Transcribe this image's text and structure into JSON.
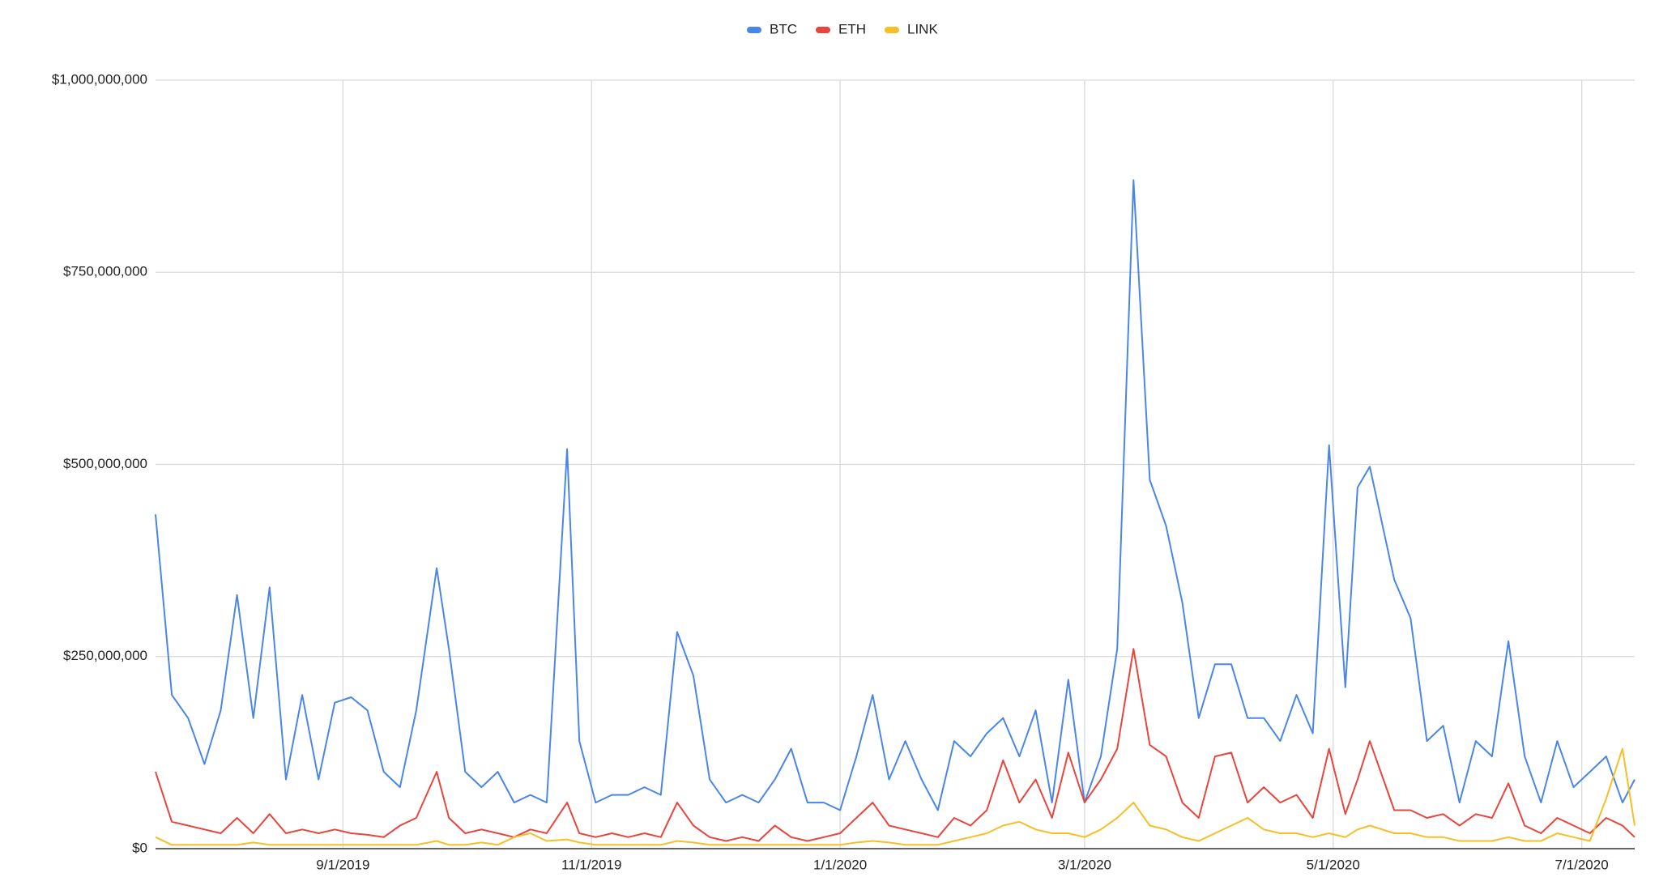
{
  "chart_data": {
    "type": "line",
    "x": [
      "7/17/2019",
      "7/21/2019",
      "7/25/2019",
      "7/29/2019",
      "8/2/2019",
      "8/6/2019",
      "8/10/2019",
      "8/14/2019",
      "8/18/2019",
      "8/22/2019",
      "8/26/2019",
      "8/30/2019",
      "9/3/2019",
      "9/7/2019",
      "9/11/2019",
      "9/15/2019",
      "9/19/2019",
      "9/24/2019",
      "9/27/2019",
      "10/1/2019",
      "10/5/2019",
      "10/9/2019",
      "10/13/2019",
      "10/17/2019",
      "10/21/2019",
      "10/26/2019",
      "10/29/2019",
      "11/2/2019",
      "11/6/2019",
      "11/10/2019",
      "11/14/2019",
      "11/18/2019",
      "11/22/2019",
      "11/26/2019",
      "11/30/2019",
      "12/4/2019",
      "12/8/2019",
      "12/12/2019",
      "12/16/2019",
      "12/20/2019",
      "12/24/2019",
      "12/28/2019",
      "1/1/2020",
      "1/5/2020",
      "1/9/2020",
      "1/13/2020",
      "1/17/2020",
      "1/21/2020",
      "1/25/2020",
      "1/29/2020",
      "2/2/2020",
      "2/6/2020",
      "2/10/2020",
      "2/14/2020",
      "2/18/2020",
      "2/22/2020",
      "2/26/2020",
      "3/1/2020",
      "3/5/2020",
      "3/9/2020",
      "3/13/2020",
      "3/17/2020",
      "3/21/2020",
      "3/25/2020",
      "3/29/2020",
      "4/2/2020",
      "4/6/2020",
      "4/10/2020",
      "4/14/2020",
      "4/18/2020",
      "4/22/2020",
      "4/26/2020",
      "4/30/2020",
      "5/4/2020",
      "5/7/2020",
      "5/10/2020",
      "5/16/2020",
      "5/20/2020",
      "5/24/2020",
      "5/28/2020",
      "6/1/2020",
      "6/5/2020",
      "6/9/2020",
      "6/13/2020",
      "6/17/2020",
      "6/21/2020",
      "6/25/2020",
      "6/29/2020",
      "7/3/2020",
      "7/7/2020",
      "7/11/2020",
      "7/14/2020"
    ],
    "series": [
      {
        "name": "BTC",
        "color": "#4a86e8",
        "values": [
          435000000,
          200000000,
          170000000,
          110000000,
          180000000,
          330000000,
          170000000,
          340000000,
          90000000,
          200000000,
          90000000,
          190000000,
          197000000,
          180000000,
          100000000,
          80000000,
          180000000,
          365000000,
          260000000,
          100000000,
          80000000,
          100000000,
          60000000,
          70000000,
          60000000,
          520000000,
          140000000,
          60000000,
          70000000,
          70000000,
          80000000,
          70000000,
          282000000,
          225000000,
          90000000,
          60000000,
          70000000,
          60000000,
          90000000,
          130000000,
          60000000,
          60000000,
          50000000,
          120000000,
          200000000,
          90000000,
          140000000,
          90000000,
          50000000,
          140000000,
          120000000,
          150000000,
          170000000,
          120000000,
          180000000,
          60000000,
          220000000,
          60000000,
          120000000,
          260000000,
          870000000,
          480000000,
          420000000,
          320000000,
          170000000,
          240000000,
          240000000,
          170000000,
          170000000,
          140000000,
          200000000,
          150000000,
          525000000,
          210000000,
          470000000,
          497000000,
          350000000,
          300000000,
          140000000,
          160000000,
          60000000,
          140000000,
          120000000,
          270000000,
          120000000,
          60000000,
          140000000,
          80000000,
          100000000,
          120000000,
          60000000,
          90000000
        ]
      },
      {
        "name": "ETH",
        "color": "#e8453c",
        "values": [
          100000000,
          35000000,
          30000000,
          25000000,
          20000000,
          40000000,
          20000000,
          45000000,
          20000000,
          25000000,
          20000000,
          25000000,
          20000000,
          18000000,
          15000000,
          30000000,
          40000000,
          100000000,
          40000000,
          20000000,
          25000000,
          20000000,
          15000000,
          25000000,
          20000000,
          60000000,
          20000000,
          15000000,
          20000000,
          15000000,
          20000000,
          15000000,
          60000000,
          30000000,
          15000000,
          10000000,
          15000000,
          10000000,
          30000000,
          15000000,
          10000000,
          15000000,
          20000000,
          40000000,
          60000000,
          30000000,
          25000000,
          20000000,
          15000000,
          40000000,
          30000000,
          50000000,
          115000000,
          60000000,
          90000000,
          40000000,
          125000000,
          60000000,
          90000000,
          130000000,
          260000000,
          135000000,
          120000000,
          60000000,
          40000000,
          120000000,
          125000000,
          60000000,
          80000000,
          60000000,
          70000000,
          40000000,
          130000000,
          45000000,
          90000000,
          140000000,
          50000000,
          50000000,
          40000000,
          45000000,
          30000000,
          45000000,
          40000000,
          85000000,
          30000000,
          20000000,
          40000000,
          30000000,
          20000000,
          40000000,
          30000000,
          15000000
        ]
      },
      {
        "name": "LINK",
        "color": "#f6bf26",
        "values": [
          15000000,
          5000000,
          5000000,
          5000000,
          5000000,
          5000000,
          8000000,
          5000000,
          5000000,
          5000000,
          5000000,
          5000000,
          5000000,
          5000000,
          5000000,
          5000000,
          5000000,
          10000000,
          5000000,
          5000000,
          8000000,
          5000000,
          15000000,
          20000000,
          10000000,
          12000000,
          8000000,
          5000000,
          5000000,
          5000000,
          5000000,
          5000000,
          10000000,
          8000000,
          5000000,
          5000000,
          5000000,
          5000000,
          5000000,
          5000000,
          5000000,
          5000000,
          5000000,
          8000000,
          10000000,
          8000000,
          5000000,
          5000000,
          5000000,
          10000000,
          15000000,
          20000000,
          30000000,
          35000000,
          25000000,
          20000000,
          20000000,
          15000000,
          25000000,
          40000000,
          60000000,
          30000000,
          25000000,
          15000000,
          10000000,
          20000000,
          30000000,
          40000000,
          25000000,
          20000000,
          20000000,
          15000000,
          20000000,
          15000000,
          25000000,
          30000000,
          20000000,
          20000000,
          15000000,
          15000000,
          10000000,
          10000000,
          10000000,
          15000000,
          10000000,
          10000000,
          20000000,
          15000000,
          10000000,
          65000000,
          130000000,
          30000000
        ]
      }
    ],
    "xlim": [
      "7/17/2019",
      "7/14/2020"
    ],
    "xticks": [
      "9/1/2019",
      "11/1/2019",
      "1/1/2020",
      "3/1/2020",
      "5/1/2020",
      "7/1/2020"
    ],
    "ylim": [
      0,
      1000000000
    ],
    "yticks": [
      {
        "value": 0,
        "label": "$0"
      },
      {
        "value": 250000000,
        "label": "$250,000,000"
      },
      {
        "value": 500000000,
        "label": "$500,000,000"
      },
      {
        "value": 750000000,
        "label": "$750,000,000"
      },
      {
        "value": 1000000000,
        "label": "$1,000,000,000"
      }
    ],
    "grid": true,
    "legend": "top"
  }
}
